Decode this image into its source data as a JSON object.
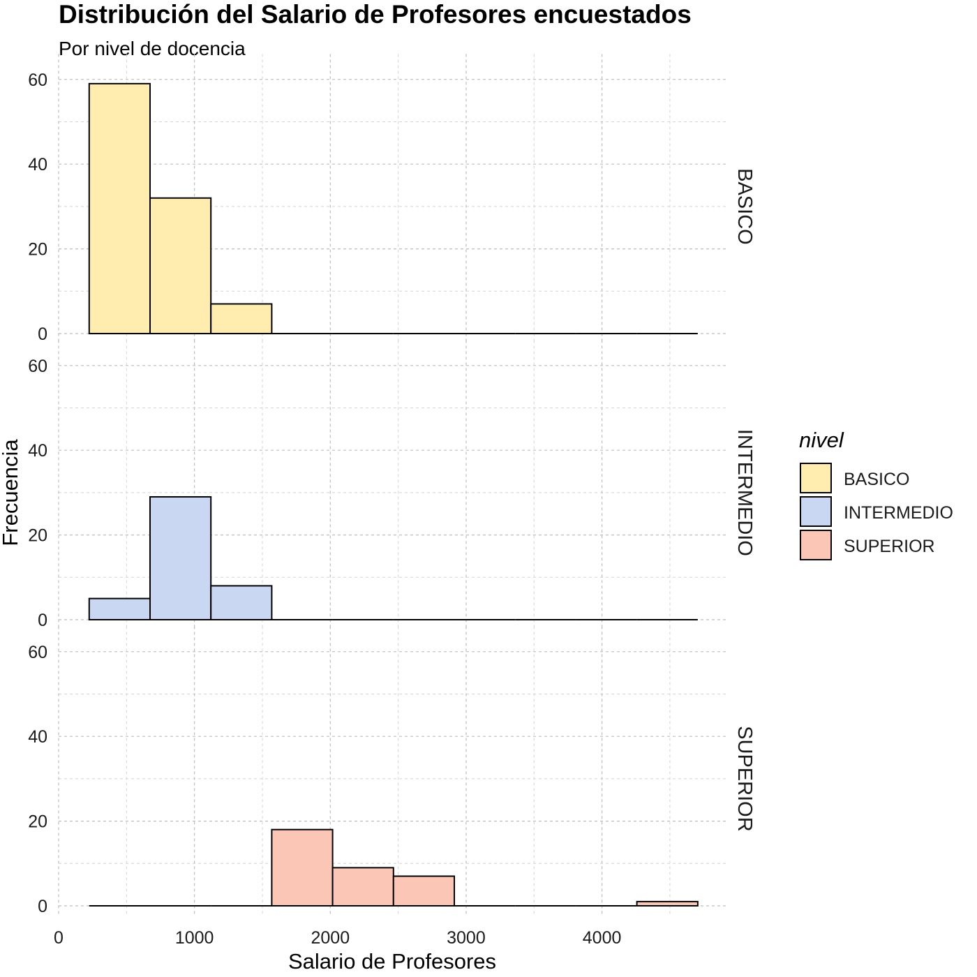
{
  "chart_data": {
    "type": "bar",
    "title": "Distribución del Salario de Profesores encuestados",
    "subtitle": "Por nivel de docencia",
    "xlabel": "Salario de Profesores",
    "ylabel": "Frecuencia",
    "xlim": [
      0,
      4900
    ],
    "ylim": [
      0,
      60
    ],
    "x_ticks": [
      0,
      1000,
      2000,
      3000,
      4000
    ],
    "y_ticks": [
      0,
      20,
      40,
      60
    ],
    "grid": true,
    "bin_edges": [
      225,
      673,
      1121,
      1569,
      2017,
      2465,
      2913,
      3361,
      3809,
      4257,
      4705
    ],
    "legend": {
      "title": "nivel",
      "placement": "right",
      "entries": [
        "BASICO",
        "INTERMEDIO",
        "SUPERIOR"
      ]
    },
    "series": [
      {
        "name": "BASICO",
        "color": "#FFEDB0",
        "counts": [
          59,
          32,
          7,
          0,
          0,
          0,
          0,
          0,
          0,
          0
        ]
      },
      {
        "name": "INTERMEDIO",
        "color": "#C9D7F2",
        "counts": [
          5,
          29,
          8,
          0,
          0,
          0,
          0,
          0,
          0,
          0
        ]
      },
      {
        "name": "SUPERIOR",
        "color": "#FBC6B6",
        "counts": [
          0,
          0,
          0,
          18,
          9,
          7,
          0,
          0,
          0,
          1
        ]
      }
    ]
  }
}
